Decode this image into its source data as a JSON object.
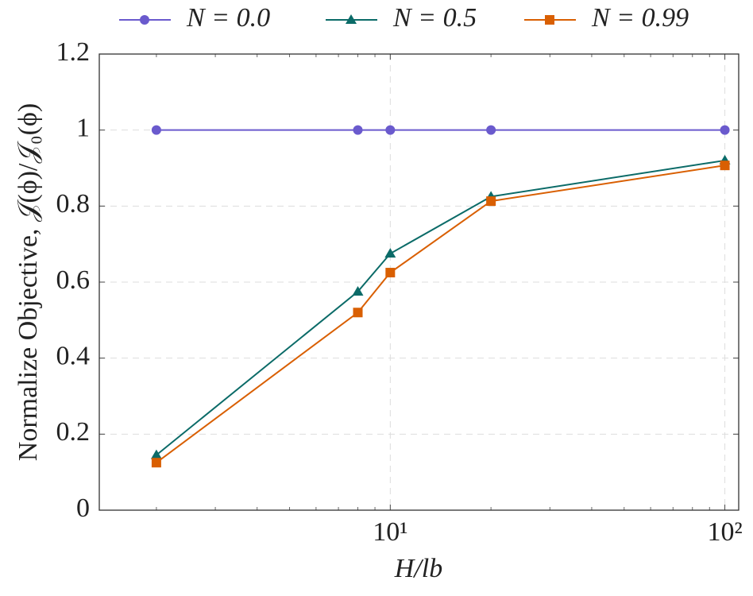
{
  "chart_data": {
    "type": "line",
    "xlabel": "H/lb",
    "ylabel": "Normalize Objective, 𝒥(ϕ)/𝒥₀(ϕ)",
    "x": [
      2,
      8,
      10,
      20,
      100
    ],
    "series": [
      {
        "name": "N = 0.0",
        "color": "#6a5acd",
        "marker": "circle",
        "values": [
          1,
          1,
          1,
          1,
          1
        ]
      },
      {
        "name": "N = 0.5",
        "color": "#0b6b68",
        "marker": "triangle",
        "values": [
          0.145,
          0.575,
          0.675,
          0.825,
          0.92
        ]
      },
      {
        "name": "N = 0.99",
        "color": "#d95f02",
        "marker": "square",
        "values": [
          0.125,
          0.52,
          0.625,
          0.813,
          0.907
        ]
      }
    ],
    "xscale": "log",
    "xlim": [
      1.35,
      110
    ],
    "xticks": [
      {
        "value": 10,
        "label": "10¹"
      },
      {
        "value": 100,
        "label": "10²"
      }
    ],
    "xminorticks": [
      2,
      3,
      4,
      5,
      6,
      7,
      8,
      9,
      20,
      30,
      40,
      50,
      60,
      70,
      80,
      90
    ],
    "ylim": [
      0,
      1.2
    ],
    "yticks": [
      0,
      0.2,
      0.4,
      0.6,
      0.8,
      1,
      1.2
    ],
    "grid": true,
    "legend": "top"
  }
}
